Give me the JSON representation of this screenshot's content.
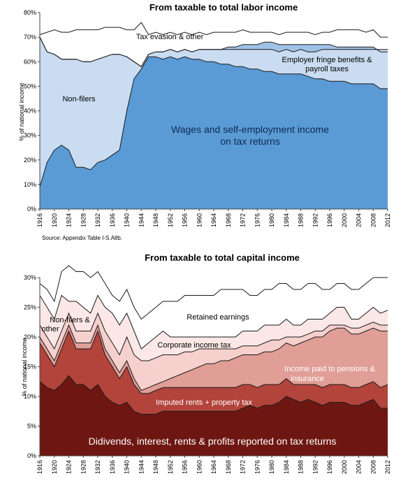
{
  "chart_data": [
    {
      "type": "area",
      "title": "From taxable to total labor income",
      "ylabel": "% of national income",
      "xlabel": "",
      "ylim": [
        0,
        80
      ],
      "yticks": [
        "0%",
        "10%",
        "20%",
        "30%",
        "40%",
        "50%",
        "60%",
        "70%",
        "80%"
      ],
      "xticks": [
        "1916",
        "1920",
        "1924",
        "1928",
        "1932",
        "1936",
        "1940",
        "1944",
        "1948",
        "1952",
        "1956",
        "1960",
        "1964",
        "1968",
        "1972",
        "1976",
        "1980",
        "1984",
        "1988",
        "1992",
        "1996",
        "2000",
        "2004",
        "2008",
        "2012"
      ],
      "x": [
        1916,
        1918,
        1920,
        1922,
        1924,
        1926,
        1928,
        1930,
        1932,
        1934,
        1936,
        1938,
        1940,
        1942,
        1944,
        1946,
        1948,
        1950,
        1952,
        1954,
        1956,
        1958,
        1960,
        1962,
        1964,
        1966,
        1968,
        1970,
        1972,
        1974,
        1976,
        1978,
        1980,
        1982,
        1984,
        1986,
        1988,
        1990,
        1992,
        1994,
        1996,
        1998,
        2000,
        2002,
        2004,
        2006,
        2008,
        2010,
        2012
      ],
      "series": [
        {
          "name": "Wages and self-employment income on tax returns",
          "color": "#5b9bd5",
          "values": [
            9,
            19,
            24,
            26,
            24,
            17,
            17,
            16,
            19,
            20,
            22,
            24,
            40,
            53,
            57,
            62,
            62,
            61,
            62,
            61,
            62,
            61,
            61,
            60,
            60,
            59,
            59,
            58,
            58,
            57,
            57,
            56,
            56,
            55,
            55,
            55,
            55,
            54,
            53,
            53,
            52,
            52,
            52,
            51,
            51,
            51,
            51,
            49,
            49
          ]
        },
        {
          "name": "Non-filers",
          "color": "#c9dcf1",
          "values": [
            70,
            64,
            63,
            61,
            61,
            61,
            60,
            60,
            61,
            62,
            63,
            63,
            62,
            60,
            58,
            63,
            64,
            64,
            65,
            64,
            65,
            64,
            65,
            65,
            65,
            65,
            65,
            65,
            65,
            65,
            65,
            65,
            65,
            64,
            65,
            64,
            65,
            64,
            64,
            65,
            65,
            65,
            65,
            65,
            65,
            65,
            65,
            65,
            65
          ]
        },
        {
          "name": "Employer fringe benefits & payroll taxes",
          "color": "#9fc2e7",
          "values": [
            70,
            64,
            63,
            61,
            61,
            61,
            60,
            60,
            61,
            62,
            63,
            63,
            62,
            60,
            58,
            63,
            64,
            64,
            65,
            64,
            65,
            64,
            65,
            65,
            65,
            65,
            66,
            66,
            67,
            67,
            67,
            68,
            68,
            67,
            67,
            67,
            67,
            67,
            67,
            67,
            67,
            66,
            66,
            66,
            66,
            66,
            66,
            64,
            64
          ]
        },
        {
          "name": "Tax evasion & other",
          "color": "#ffffff",
          "values": [
            71,
            72,
            73,
            72,
            72,
            73,
            73,
            73,
            73,
            74,
            74,
            74,
            73,
            73,
            76,
            71,
            72,
            71,
            72,
            71,
            72,
            71,
            72,
            71,
            72,
            72,
            72,
            72,
            73,
            72,
            72,
            72,
            72,
            71,
            72,
            72,
            72,
            72,
            71,
            72,
            72,
            73,
            73,
            73,
            73,
            72,
            73,
            70,
            70
          ]
        }
      ],
      "labels": {
        "tax_evasion": "Tax evasion & other",
        "fringe": "Employer fringe benefits & payroll taxes",
        "nonfilers": "Non-filers",
        "wages": "Wages and self-employment income on tax returns"
      },
      "source": "Source: Appendix Table I-S.A8b."
    },
    {
      "type": "area",
      "title": "From taxable to total capital income",
      "ylabel": "% of national income",
      "xlabel": "",
      "ylim": [
        0,
        30
      ],
      "yticks": [
        "0%",
        "5%",
        "10%",
        "15%",
        "20%",
        "25%",
        "30%"
      ],
      "xticks": [
        "1916",
        "1920",
        "1924",
        "1928",
        "1932",
        "1936",
        "1940",
        "1944",
        "1948",
        "1952",
        "1956",
        "1960",
        "1964",
        "1968",
        "1972",
        "1976",
        "1980",
        "1984",
        "1988",
        "1992",
        "1996",
        "2000",
        "2004",
        "2008",
        "2012"
      ],
      "x": [
        1916,
        1918,
        1920,
        1922,
        1924,
        1926,
        1928,
        1930,
        1932,
        1934,
        1936,
        1938,
        1940,
        1942,
        1944,
        1946,
        1948,
        1950,
        1952,
        1954,
        1956,
        1958,
        1960,
        1962,
        1964,
        1966,
        1968,
        1970,
        1972,
        1974,
        1976,
        1978,
        1980,
        1982,
        1984,
        1986,
        1988,
        1990,
        1992,
        1994,
        1996,
        1998,
        2000,
        2002,
        2004,
        2006,
        2008,
        2010,
        2012
      ],
      "series": [
        {
          "name": "Didivends, interest, rents & profits reported on tax returns",
          "color": "#6e1712",
          "values": [
            12.5,
            11.5,
            11,
            12,
            13.5,
            12,
            12,
            11,
            12,
            10,
            9,
            8.5,
            9,
            7.5,
            7,
            7,
            7,
            7.5,
            7.5,
            7.5,
            7.5,
            7.5,
            7.5,
            7.5,
            7.5,
            7.5,
            7.5,
            7.5,
            8,
            8.5,
            8,
            8.5,
            8.5,
            9,
            10,
            9.5,
            9,
            9.5,
            9,
            8.5,
            9,
            9,
            9,
            8.5,
            8.5,
            9,
            9.5,
            8,
            8
          ]
        },
        {
          "name": "Imputed rents + property tax",
          "color": "#b2443b",
          "values": [
            19,
            17,
            15,
            18,
            21,
            18,
            18,
            18,
            21,
            17,
            15,
            13,
            15,
            12,
            10.5,
            10.5,
            11,
            11.5,
            11.5,
            11.5,
            11.5,
            11.5,
            11.5,
            11.5,
            11.5,
            11.5,
            11.5,
            11.5,
            12,
            12,
            11.5,
            12,
            12,
            12,
            13,
            12,
            12,
            12,
            12,
            11.5,
            12,
            12,
            12,
            11.5,
            11.5,
            12,
            12.5,
            11.5,
            12
          ]
        },
        {
          "name": "Income paid to pensions & insurance",
          "color": "#e09e97",
          "values": [
            20,
            18,
            16,
            19,
            22,
            19,
            19,
            19,
            22,
            18,
            16,
            14,
            16,
            13,
            11,
            11.5,
            12,
            12.5,
            13,
            13.5,
            14,
            14.5,
            15,
            15.5,
            15.5,
            16,
            16,
            16.5,
            17,
            17,
            17,
            17.5,
            17.5,
            18,
            19,
            18.5,
            19,
            19.5,
            20,
            20,
            21,
            21.5,
            21.5,
            20.5,
            20.5,
            21,
            21.5,
            21,
            21
          ]
        },
        {
          "name": "Corporate income tax",
          "color": "#f5d0cd",
          "values": [
            22,
            20,
            18,
            21,
            24,
            21,
            21,
            21,
            24,
            21,
            19,
            17,
            20,
            17,
            16,
            16,
            16.5,
            17,
            17,
            17,
            17.5,
            17.5,
            18,
            18,
            18,
            18,
            18,
            18,
            18.5,
            18.5,
            18.5,
            19,
            19.5,
            19.5,
            20,
            20,
            20,
            20.5,
            21,
            21,
            22,
            22,
            22,
            21.5,
            21.5,
            22,
            22.5,
            22,
            22
          ]
        },
        {
          "name": "Retained earnings",
          "color": "#fbe8e6",
          "values": [
            27,
            25,
            23,
            27,
            26,
            26,
            25,
            24,
            27,
            25,
            24,
            22,
            24,
            21,
            18,
            19,
            20,
            21,
            20,
            20,
            20,
            20,
            20,
            20,
            20,
            20,
            20,
            20,
            21,
            21,
            21,
            22,
            22,
            22,
            23,
            22,
            22,
            23,
            23,
            23,
            24,
            25,
            25,
            23,
            23,
            24,
            25,
            24,
            24.5
          ]
        },
        {
          "name": "Non-filers & other",
          "color": "#ffffff",
          "values": [
            29,
            28,
            26,
            31,
            32,
            31,
            31,
            30,
            31,
            29,
            27,
            26,
            28,
            25,
            23,
            24,
            25,
            26,
            26,
            26,
            27,
            27,
            27,
            27,
            27,
            28,
            28,
            28,
            28,
            27,
            27,
            28,
            28,
            29,
            29,
            28,
            28,
            29,
            29,
            28,
            28,
            29,
            29,
            28,
            28,
            29,
            30,
            30,
            30
          ]
        }
      ],
      "labels": {
        "nonfilers": "Non-filers & other",
        "retained": "Retained earnings",
        "corporate": "Corporate income tax",
        "pensions": "Income paid to pensions & insurance",
        "imputed": "Imputed rents + property tax",
        "dividends": "Didivends, interest, rents & profits reported on tax returns"
      }
    }
  ]
}
